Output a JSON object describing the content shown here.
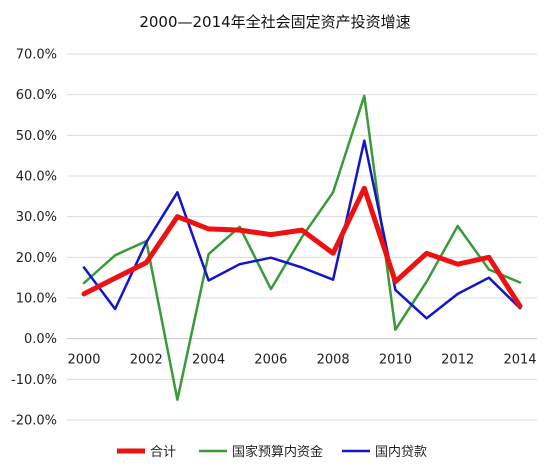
{
  "chart_data": {
    "type": "line",
    "title": "2000—2014年全社会固定资产投资增速",
    "xlabel": "",
    "ylabel": "",
    "x": [
      2000,
      2001,
      2002,
      2003,
      2004,
      2005,
      2006,
      2007,
      2008,
      2009,
      2010,
      2011,
      2012,
      2013,
      2014
    ],
    "x_tick_labels": [
      "2000",
      "2002",
      "2004",
      "2006",
      "2008",
      "2010",
      "2012",
      "2014"
    ],
    "x_tick_values": [
      2000,
      2002,
      2004,
      2006,
      2008,
      2010,
      2012,
      2014
    ],
    "y_tick_labels": [
      "70.0%",
      "60.0%",
      "50.0%",
      "40.0%",
      "30.0%",
      "20.0%",
      "10.0%",
      "0.0%",
      "-10.0%",
      "-20.0%"
    ],
    "y_tick_values": [
      70,
      60,
      50,
      40,
      30,
      20,
      10,
      0,
      -10,
      -20
    ],
    "ylim": [
      -20,
      70
    ],
    "grid": "horizontal",
    "legend_position": "bottom",
    "series": [
      {
        "name": "合计",
        "color": "#ee1111",
        "width": "thick",
        "values": [
          11.0,
          14.9,
          18.7,
          30.0,
          27.0,
          26.7,
          25.6,
          26.7,
          21.0,
          37.0,
          14.0,
          21.0,
          18.3,
          20.0,
          8.0
        ]
      },
      {
        "name": "国家预算内资金",
        "color": "#3a9a3a",
        "width": "normal",
        "values": [
          13.7,
          20.5,
          24.0,
          -15.0,
          20.8,
          27.5,
          12.2,
          25.0,
          36.0,
          59.7,
          2.2,
          14.0,
          27.7,
          17.0,
          13.8
        ]
      },
      {
        "name": "国内贷款",
        "color": "#1414c8",
        "width": "normal",
        "values": [
          17.5,
          7.3,
          23.7,
          36.0,
          14.3,
          18.3,
          19.9,
          17.5,
          14.5,
          48.7,
          12.0,
          5.0,
          11.0,
          15.0,
          7.5
        ]
      }
    ]
  }
}
